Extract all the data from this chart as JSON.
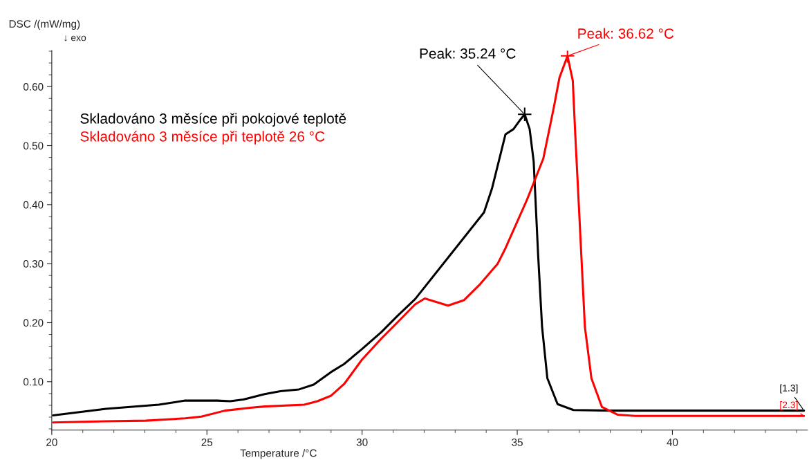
{
  "chart_data": {
    "type": "line",
    "xlabel": "Temperature /°C",
    "ylabel": "DSC /(mW/mg)",
    "xlim": [
      20,
      44.35
    ],
    "ylim": [
      0.018,
      0.661
    ],
    "xticks": [
      20,
      25,
      30,
      35,
      40
    ],
    "yticks": [
      {
        "value": 0.1,
        "label": "0.10"
      },
      {
        "value": 0.2,
        "label": "0.20"
      },
      {
        "value": 0.3,
        "label": "0.30"
      },
      {
        "value": 0.4,
        "label": "0.40"
      },
      {
        "value": 0.5,
        "label": "0.50"
      },
      {
        "value": 0.6,
        "label": "0.60"
      }
    ],
    "grid": false,
    "legend": "top left",
    "series": [
      {
        "name": "Skladováno 3 měsíce při pokojové teplotě",
        "color": "#000000",
        "x": [
          20.04,
          21.75,
          23.45,
          24.3,
          25.33,
          25.75,
          26.18,
          26.86,
          27.37,
          27.97,
          28.44,
          28.99,
          29.42,
          29.99,
          30.62,
          31.13,
          31.71,
          32.89,
          33.93,
          34.19,
          34.62,
          34.88,
          35.1,
          35.24,
          35.4,
          35.53,
          35.67,
          35.8,
          35.97,
          36.3,
          36.81,
          38.0,
          40.0,
          42.0,
          44.24
        ],
        "values": [
          0.043,
          0.054,
          0.061,
          0.068,
          0.068,
          0.067,
          0.07,
          0.079,
          0.084,
          0.087,
          0.095,
          0.116,
          0.13,
          0.155,
          0.184,
          0.211,
          0.24,
          0.318,
          0.387,
          0.428,
          0.519,
          0.528,
          0.544,
          0.553,
          0.528,
          0.473,
          0.318,
          0.193,
          0.106,
          0.062,
          0.052,
          0.051,
          0.051,
          0.051,
          0.051
        ]
      },
      {
        "name": "Skladováno 3 měsíce při teplotě 26 °C",
        "color": "#ff0000",
        "x": [
          20.04,
          21.75,
          23.03,
          24.3,
          24.82,
          25.58,
          26.44,
          26.86,
          28.14,
          28.56,
          28.99,
          29.42,
          29.99,
          30.62,
          31.13,
          31.71,
          32.02,
          32.77,
          33.28,
          33.78,
          34.37,
          34.62,
          35.32,
          35.84,
          36.18,
          36.36,
          36.62,
          36.79,
          36.87,
          37.0,
          37.18,
          37.39,
          37.73,
          38.24,
          38.8,
          40.0,
          42.0,
          44.24
        ],
        "values": [
          0.031,
          0.033,
          0.034,
          0.038,
          0.041,
          0.051,
          0.056,
          0.058,
          0.061,
          0.067,
          0.076,
          0.096,
          0.137,
          0.173,
          0.2,
          0.231,
          0.241,
          0.229,
          0.238,
          0.264,
          0.3,
          0.326,
          0.409,
          0.478,
          0.565,
          0.615,
          0.652,
          0.61,
          0.519,
          0.383,
          0.193,
          0.106,
          0.057,
          0.044,
          0.042,
          0.042,
          0.042,
          0.042
        ]
      }
    ],
    "annotations": [
      "↓ exo",
      {
        "text": "Peak: 35.24 °C",
        "x": 35.24,
        "y": 0.553
      },
      {
        "text": "Peak: 36.62 °C",
        "x": 36.62,
        "y": 0.652
      },
      {
        "text": "[1.3]",
        "x": 44.24,
        "y": 0.051
      },
      {
        "text": "[2.3]",
        "x": 44.24,
        "y": 0.042
      }
    ]
  }
}
